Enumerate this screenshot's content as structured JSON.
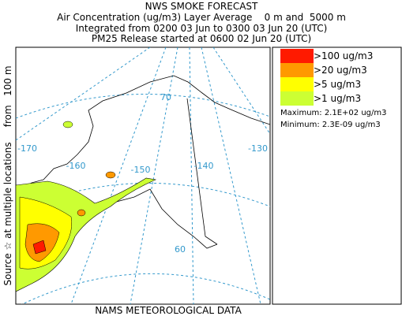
{
  "header": {
    "title": "NWS SMOKE FORECAST",
    "lines": [
      "Air Concentration (ug/m3) Layer Average    0 m and  5000 m",
      "Integrated from 0200 03 Jun to 0300 03 Jun 20 (UTC)",
      "PM25 Release started at 0600 02 Jun 20 (UTC)"
    ]
  },
  "side_label": "Source ☆ at multiple locations     from   100 m",
  "footer": "NAMS METEOROLOGICAL DATA",
  "map": {
    "labels": [
      "70",
      "-170",
      "-160",
      "-150",
      "-140",
      "-130",
      "60"
    ]
  },
  "legend": {
    "items": [
      {
        "label": ">100 ug/m3",
        "color": "#ff1a00"
      },
      {
        "label": ">20 ug/m3",
        "color": "#ff9900"
      },
      {
        "label": ">5 ug/m3",
        "color": "#ffff00"
      },
      {
        "label": ">1 ug/m3",
        "color": "#ccff33"
      }
    ],
    "maximum": "Maximum: 2.1E+02 ug/m3",
    "minimum": "Minimum: 2.3E-09 ug/m3"
  }
}
